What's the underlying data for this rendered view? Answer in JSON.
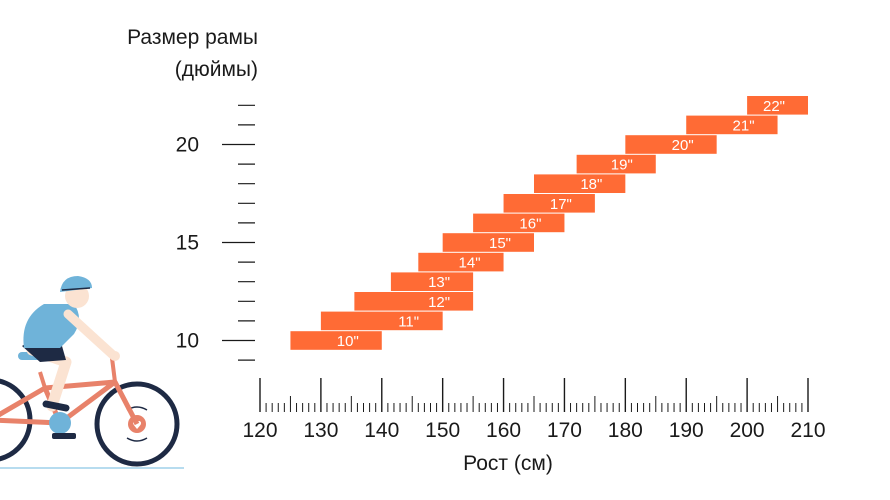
{
  "chart_data": {
    "type": "bar",
    "orientation": "horizontal-range",
    "ylabel_lines": [
      "Размер рамы",
      "(дюймы)"
    ],
    "xlabel": "Рост (см)",
    "x_ticks": [
      "120",
      "130",
      "140",
      "150",
      "160",
      "170",
      "180",
      "190",
      "200",
      "210"
    ],
    "y_ticks": [
      "10",
      "15",
      "20"
    ],
    "xlim": [
      120,
      210
    ],
    "ylim": [
      9,
      22
    ],
    "bar_color": "#FF6B35",
    "series": [
      {
        "bars": [
          {
            "size": 10,
            "label": "10\"",
            "from": 125,
            "to": 140
          },
          {
            "size": 11,
            "label": "11\"",
            "from": 130,
            "to": 150
          },
          {
            "size": 12,
            "label": "12\"",
            "from": 135.5,
            "to": 155
          },
          {
            "size": 13,
            "label": "13\"",
            "from": 141.5,
            "to": 155
          },
          {
            "size": 14,
            "label": "14\"",
            "from": 146,
            "to": 160
          },
          {
            "size": 15,
            "label": "15\"",
            "from": 150,
            "to": 165
          },
          {
            "size": 16,
            "label": "16\"",
            "from": 155,
            "to": 170
          },
          {
            "size": 17,
            "label": "17\"",
            "from": 160,
            "to": 175
          },
          {
            "size": 18,
            "label": "18\"",
            "from": 165,
            "to": 180
          },
          {
            "size": 19,
            "label": "19\"",
            "from": 172,
            "to": 185
          },
          {
            "size": 20,
            "label": "20\"",
            "from": 180,
            "to": 195
          },
          {
            "size": 21,
            "label": "21\"",
            "from": 190,
            "to": 205
          },
          {
            "size": 22,
            "label": "22\"",
            "from": 200,
            "to": 210
          }
        ]
      }
    ]
  },
  "illustration": {
    "icon": "cyclist-illustration-icon",
    "colors": {
      "frame": "#E8826A",
      "shirt": "#6FB3D9",
      "helmet": "#6FB3D9",
      "shorts": "#1E2A44",
      "tire": "#1E2A44",
      "skin": "#FBE3D2"
    }
  }
}
